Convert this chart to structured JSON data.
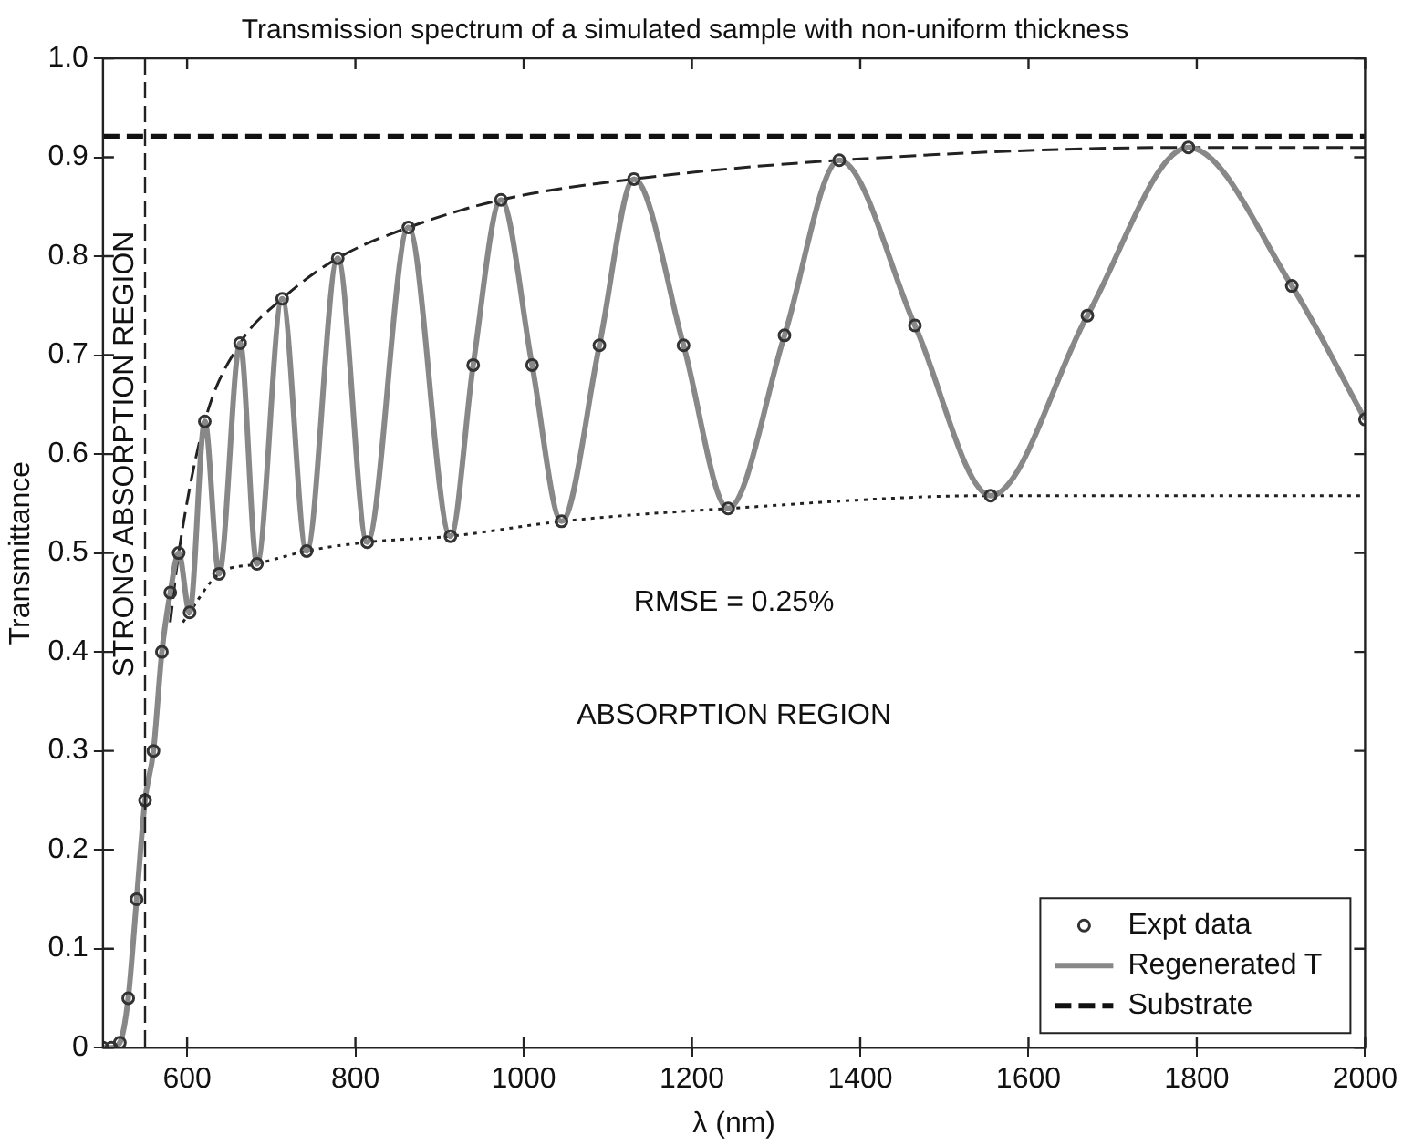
{
  "chart_data": {
    "type": "line",
    "title": "Transmission spectrum of a simulated sample with non-uniform thickness",
    "xlabel": "λ (nm)",
    "ylabel": "Transmittance",
    "xlim": [
      500,
      2000
    ],
    "xticks": [
      600,
      800,
      1000,
      1200,
      1400,
      1600,
      1800,
      2000
    ],
    "ylim": [
      0,
      1
    ],
    "yticks": [
      0,
      0.1,
      0.2,
      0.3,
      0.4,
      0.5,
      0.6,
      0.7,
      0.8,
      0.9,
      {
        "value": 1,
        "label": "1.0"
      }
    ],
    "grid": false,
    "legend": "bottom right",
    "annotations": [
      "RMSE = 0.25%",
      "ABSORPTION REGION"
    ],
    "ref_lines": [
      {
        "axis": "x",
        "value": 550,
        "label": "STRONG ABSORPTION REGION",
        "color": "#222222",
        "line_style": "dashed"
      }
    ],
    "series": [
      {
        "name": "Expt data",
        "type": "scatter",
        "marker": "circle",
        "color": "#333333",
        "x": [
          500,
          510,
          520,
          530,
          540,
          550,
          560,
          570,
          580,
          590,
          603,
          621,
          638,
          663,
          683,
          713,
          742,
          779,
          814,
          863,
          913,
          940,
          973,
          1010,
          1045,
          1090,
          1131,
          1190,
          1243,
          1310,
          1375,
          1465,
          1555,
          1670,
          1790,
          1913,
          2000
        ],
        "values": [
          0,
          0,
          0.005,
          0.05,
          0.15,
          0.25,
          0.3,
          0.4,
          0.46,
          0.5,
          0.44,
          0.633,
          0.479,
          0.712,
          0.489,
          0.757,
          0.502,
          0.798,
          0.511,
          0.829,
          0.517,
          0.69,
          0.857,
          0.69,
          0.532,
          0.71,
          0.878,
          0.71,
          0.545,
          0.72,
          0.897,
          0.73,
          0.558,
          0.74,
          0.91,
          0.77,
          0.635
        ]
      },
      {
        "name": "Regenerated T",
        "type": "line",
        "color": "#888888",
        "line_style": "solid",
        "x": [
          500,
          510,
          520,
          530,
          540,
          550,
          560,
          570,
          580,
          590,
          603,
          621,
          638,
          663,
          683,
          713,
          742,
          779,
          814,
          863,
          913,
          940,
          973,
          1010,
          1045,
          1090,
          1131,
          1190,
          1243,
          1310,
          1375,
          1465,
          1555,
          1670,
          1790,
          1913,
          2000
        ],
        "values": [
          0,
          0,
          0.005,
          0.05,
          0.15,
          0.25,
          0.3,
          0.4,
          0.46,
          0.5,
          0.44,
          0.633,
          0.479,
          0.712,
          0.489,
          0.757,
          0.502,
          0.798,
          0.511,
          0.829,
          0.517,
          0.69,
          0.857,
          0.69,
          0.532,
          0.71,
          0.878,
          0.71,
          0.545,
          0.72,
          0.897,
          0.73,
          0.558,
          0.74,
          0.91,
          0.77,
          0.635
        ]
      },
      {
        "name": "Substrate",
        "type": "line",
        "color": "#111111",
        "line_style": "dashed",
        "x": [
          500,
          2000
        ],
        "values": [
          0.921,
          0.921
        ]
      },
      {
        "type": "line",
        "color": "#222222",
        "line_style": "dashed",
        "x": [
          580,
          590,
          621,
          663,
          713,
          779,
          863,
          973,
          1131,
          1375,
          1790,
          2000
        ],
        "values": [
          0.43,
          0.5,
          0.633,
          0.712,
          0.757,
          0.798,
          0.829,
          0.857,
          0.878,
          0.897,
          0.91,
          0.91
        ]
      },
      {
        "type": "line",
        "color": "#222222",
        "line_style": "dotted",
        "x": [
          595,
          638,
          683,
          742,
          814,
          913,
          1045,
          1243,
          1555,
          2000
        ],
        "values": [
          0.43,
          0.479,
          0.489,
          0.502,
          0.511,
          0.517,
          0.532,
          0.545,
          0.558,
          0.558
        ]
      }
    ]
  }
}
